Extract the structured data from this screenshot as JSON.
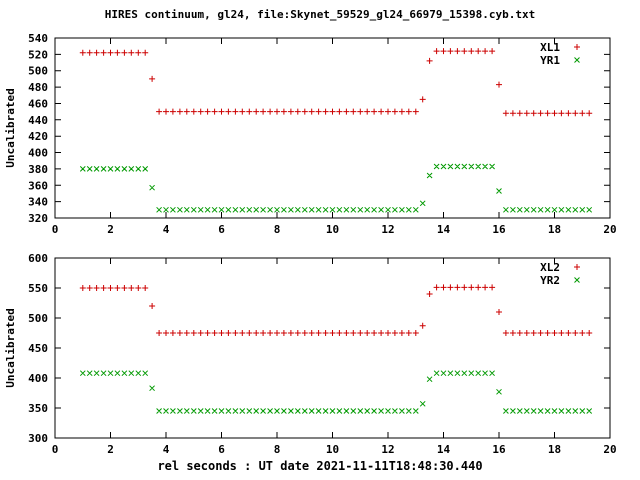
{
  "title": "HIRES continuum, gl24, file:Skynet_59529_gl24_66979_15398.cyb.txt",
  "xlabel": "rel seconds : UT date 2021-11-11T18:48:30.440",
  "colors": {
    "red": "#cc0000",
    "green": "#009900",
    "axis": "#000000"
  },
  "chart_data": [
    {
      "type": "scatter",
      "ylabel": "Uncalibrated",
      "ylim": [
        320,
        540
      ],
      "ytick": 20,
      "xlim": [
        0,
        20
      ],
      "xtick": 2,
      "legend_position": "top-right-inside",
      "grid": false,
      "series": [
        {
          "name": "XL1",
          "marker": "plus",
          "color": "#cc0000",
          "runs": [
            {
              "x0": 1.0,
              "x1": 3.25,
              "step": 0.25,
              "y": 522
            },
            {
              "x": 3.5,
              "y": 490
            },
            {
              "x0": 3.75,
              "x1": 13.0,
              "step": 0.25,
              "y": 450
            },
            {
              "x": 13.25,
              "y": 465
            },
            {
              "x": 13.5,
              "y": 512
            },
            {
              "x0": 13.75,
              "x1": 15.75,
              "step": 0.25,
              "y": 524
            },
            {
              "x": 16.0,
              "y": 483
            },
            {
              "x0": 16.25,
              "x1": 19.25,
              "step": 0.25,
              "y": 448
            }
          ]
        },
        {
          "name": "YR1",
          "marker": "cross",
          "color": "#009900",
          "runs": [
            {
              "x0": 1.0,
              "x1": 3.25,
              "step": 0.25,
              "y": 380
            },
            {
              "x": 3.5,
              "y": 357
            },
            {
              "x0": 3.75,
              "x1": 13.0,
              "step": 0.25,
              "y": 330
            },
            {
              "x": 13.25,
              "y": 338
            },
            {
              "x": 13.5,
              "y": 372
            },
            {
              "x0": 13.75,
              "x1": 15.75,
              "step": 0.25,
              "y": 383
            },
            {
              "x": 16.0,
              "y": 353
            },
            {
              "x0": 16.25,
              "x1": 19.25,
              "step": 0.25,
              "y": 330
            }
          ]
        }
      ]
    },
    {
      "type": "scatter",
      "ylabel": "Uncalibrated",
      "ylim": [
        300,
        600
      ],
      "ytick": 50,
      "xlim": [
        0,
        20
      ],
      "xtick": 2,
      "legend_position": "top-right-inside",
      "grid": false,
      "series": [
        {
          "name": "XL2",
          "marker": "plus",
          "color": "#cc0000",
          "runs": [
            {
              "x0": 1.0,
              "x1": 3.25,
              "step": 0.25,
              "y": 550
            },
            {
              "x": 3.5,
              "y": 520
            },
            {
              "x0": 3.75,
              "x1": 13.0,
              "step": 0.25,
              "y": 475
            },
            {
              "x": 13.25,
              "y": 487
            },
            {
              "x": 13.5,
              "y": 540
            },
            {
              "x0": 13.75,
              "x1": 15.75,
              "step": 0.25,
              "y": 551
            },
            {
              "x": 16.0,
              "y": 510
            },
            {
              "x0": 16.25,
              "x1": 19.25,
              "step": 0.25,
              "y": 475
            }
          ]
        },
        {
          "name": "YR2",
          "marker": "cross",
          "color": "#009900",
          "runs": [
            {
              "x0": 1.0,
              "x1": 3.25,
              "step": 0.25,
              "y": 408
            },
            {
              "x": 3.5,
              "y": 383
            },
            {
              "x0": 3.75,
              "x1": 13.0,
              "step": 0.25,
              "y": 345
            },
            {
              "x": 13.25,
              "y": 357
            },
            {
              "x": 13.5,
              "y": 398
            },
            {
              "x0": 13.75,
              "x1": 15.75,
              "step": 0.25,
              "y": 408
            },
            {
              "x": 16.0,
              "y": 377
            },
            {
              "x0": 16.25,
              "x1": 19.25,
              "step": 0.25,
              "y": 345
            }
          ]
        }
      ]
    }
  ]
}
